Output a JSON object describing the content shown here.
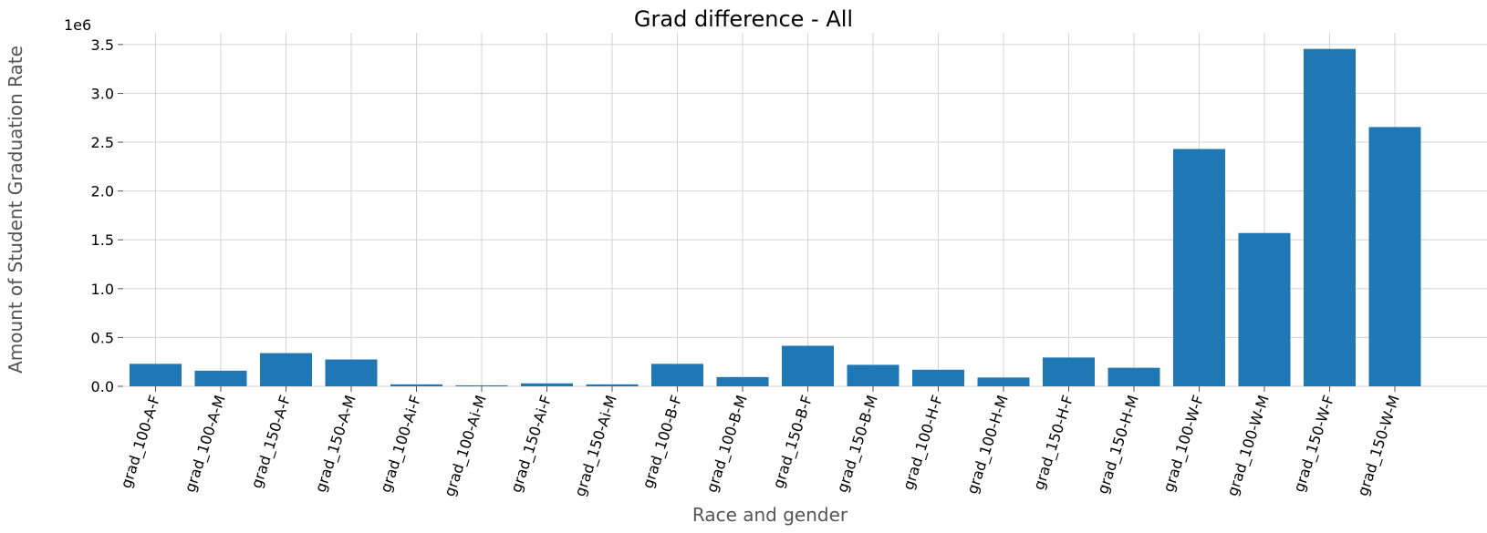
{
  "chart_data": {
    "type": "bar",
    "title": "Grad difference - All",
    "xlabel": "Race and gender",
    "ylabel": "Amount of Student Graduation Rate",
    "y_offset_label": "1e6",
    "ylim": [
      0,
      3.62
    ],
    "yticks": [
      0.0,
      0.5,
      1.0,
      1.5,
      2.0,
      2.5,
      3.0,
      3.5
    ],
    "ytick_labels": [
      "0.0",
      "0.5",
      "1.0",
      "1.5",
      "2.0",
      "2.5",
      "3.0",
      "3.5"
    ],
    "grid": true,
    "bar_color": "#1f77b4",
    "categories": [
      "grad_100-A-F",
      "grad_100-A-M",
      "grad_150-A-F",
      "grad_150-A-M",
      "grad_100-Ai-F",
      "grad_100-Ai-M",
      "grad_150-Ai-F",
      "grad_150-Ai-M",
      "grad_100-B-F",
      "grad_100-B-M",
      "grad_150-B-F",
      "grad_150-B-M",
      "grad_100-H-F",
      "grad_100-H-M",
      "grad_150-H-F",
      "grad_150-H-M",
      "grad_100-W-F",
      "grad_100-W-M",
      "grad_150-W-F",
      "grad_150-W-M"
    ],
    "values": [
      0.23,
      0.16,
      0.34,
      0.275,
      0.02,
      0.01,
      0.03,
      0.02,
      0.23,
      0.095,
      0.415,
      0.22,
      0.17,
      0.09,
      0.295,
      0.19,
      2.43,
      1.57,
      3.455,
      2.655
    ]
  }
}
